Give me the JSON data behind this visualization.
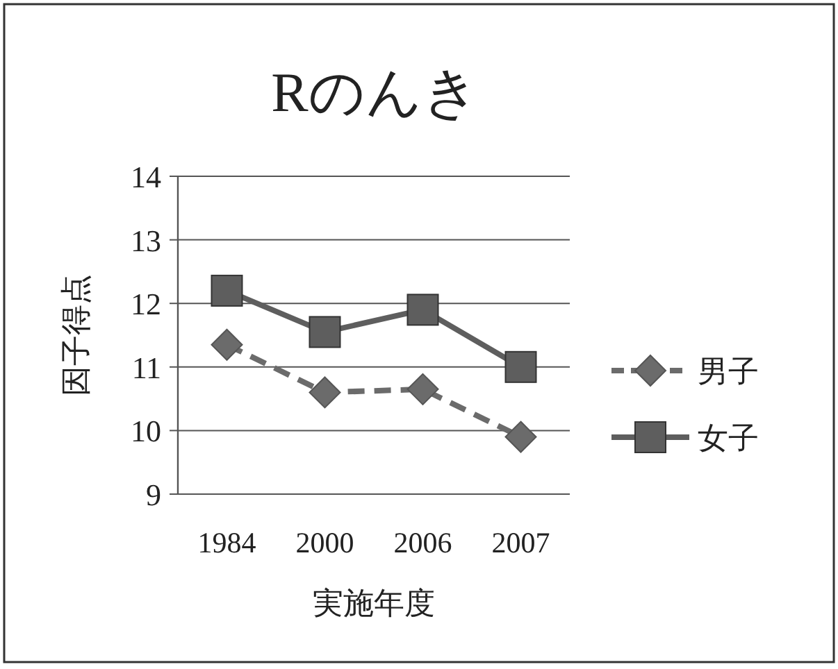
{
  "chart_data": {
    "type": "line",
    "title": "Rのんき",
    "xlabel": "実施年度",
    "ylabel": "因子得点",
    "categories": [
      "1984",
      "2000",
      "2006",
      "2007"
    ],
    "series": [
      {
        "name": "男子",
        "color": "#6b6b6b",
        "values": [
          11.35,
          10.6,
          10.65,
          9.9
        ],
        "marker": "diamond",
        "line_style": "dashed"
      },
      {
        "name": "女子",
        "color": "#5e5e5e",
        "values": [
          12.2,
          11.55,
          11.9,
          11.0
        ],
        "marker": "square",
        "line_style": "solid"
      }
    ],
    "ylim": [
      9,
      14
    ],
    "yticks": [
      9,
      10,
      11,
      12,
      13,
      14
    ],
    "grid": "y",
    "legend": "right"
  }
}
